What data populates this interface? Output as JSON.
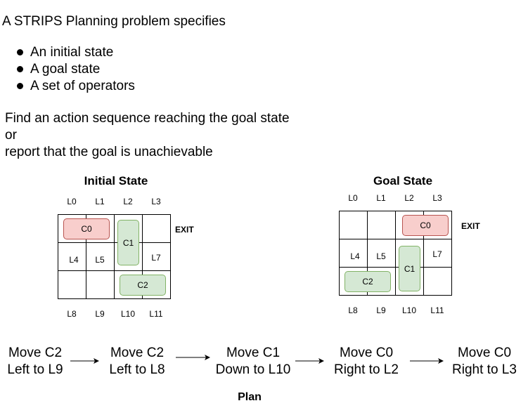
{
  "intro": "A STRIPS Planning problem specifies",
  "bullets": [
    "An initial state",
    "A goal state",
    "A set of operators"
  ],
  "task": [
    "Find an action sequence reaching the goal state",
    "or",
    "report that the goal is unachievable"
  ],
  "initial": {
    "title": "Initial State",
    "top_labels": [
      "L0",
      "L1",
      "L2",
      "L3"
    ],
    "mid_labels": [
      "L4",
      "L5",
      "L7"
    ],
    "bottom_labels": [
      "L8",
      "L9",
      "L10",
      "L11"
    ],
    "exit": "EXIT",
    "cars": [
      "C0",
      "C1",
      "C2"
    ]
  },
  "goal": {
    "title": "Goal State",
    "top_labels": [
      "L0",
      "L1",
      "L2",
      "L3"
    ],
    "mid_labels": [
      "L4",
      "L5",
      "L7"
    ],
    "bottom_labels": [
      "L8",
      "L9",
      "L10",
      "L11"
    ],
    "exit": "EXIT",
    "cars": [
      "C0",
      "C1",
      "C2"
    ]
  },
  "plan": {
    "label": "Plan",
    "steps": [
      {
        "line1": "Move C2",
        "line2": "Left to L9"
      },
      {
        "line1": "Move C2",
        "line2": "Left to L8"
      },
      {
        "line1": "Move C1",
        "line2": "Down to L10"
      },
      {
        "line1": "Move C0",
        "line2": "Right to L2"
      },
      {
        "line1": "Move C0",
        "line2": "Right to L3"
      }
    ]
  },
  "colors": {
    "red_fill": "#f8cecc",
    "red_border": "#b85450",
    "green_fill": "#d5e8d4",
    "green_border": "#82b366"
  }
}
